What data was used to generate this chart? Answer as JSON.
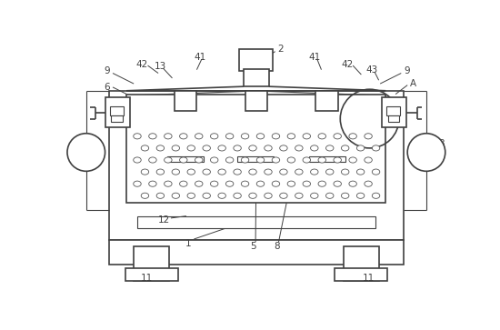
{
  "figure_width": 5.5,
  "figure_height": 3.63,
  "dpi": 100,
  "bg_color": "#ffffff",
  "line_color": "#404040",
  "lw": 1.2,
  "tlw": 0.8
}
